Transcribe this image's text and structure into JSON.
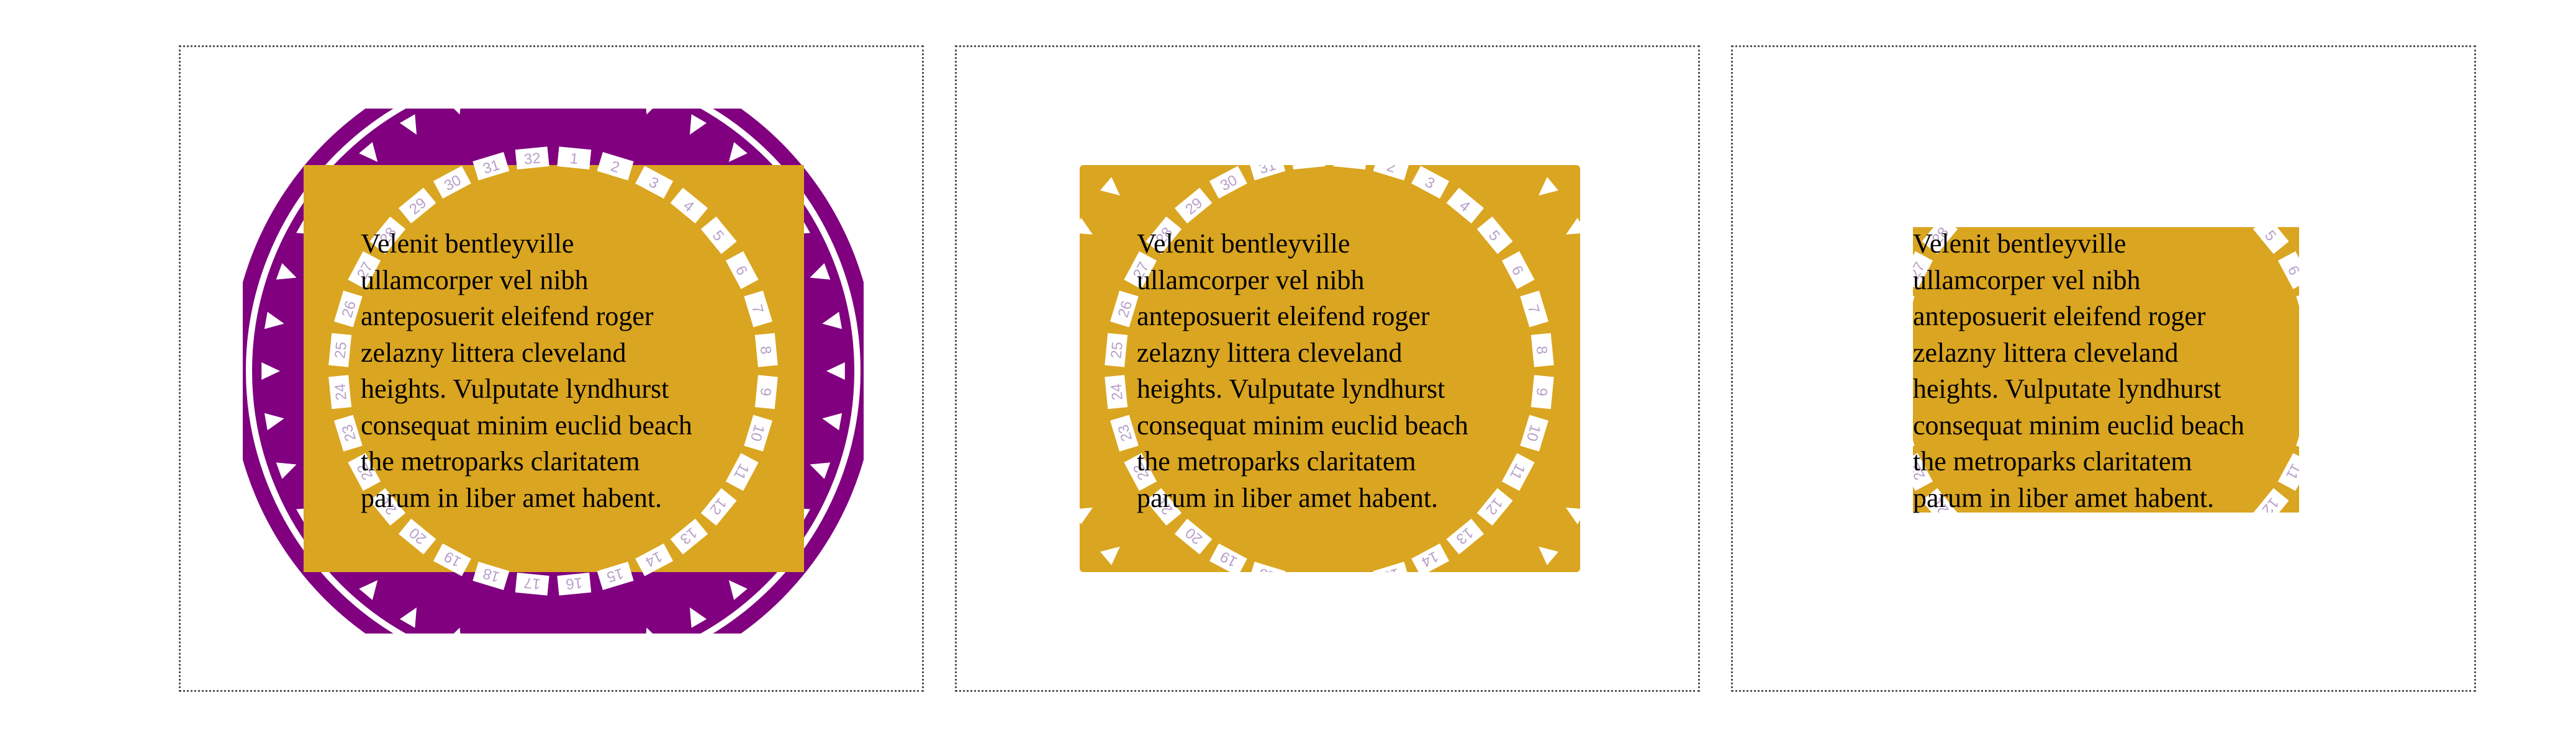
{
  "colors": {
    "background": "#ffffff",
    "gold": "#DAA520",
    "purple": "#800080",
    "tick": "#ffffff",
    "border": "#555555"
  },
  "dial_numbers": [
    "1",
    "2",
    "3",
    "4",
    "5",
    "6",
    "7",
    "8",
    "9",
    "10",
    "11",
    "12",
    "13",
    "14",
    "15",
    "16",
    "17",
    "18",
    "19",
    "20",
    "21",
    "22",
    "23",
    "24",
    "25",
    "26",
    "27",
    "28",
    "29",
    "30",
    "31",
    "32"
  ],
  "paragraph_lines": [
    "Velenit bentleyville",
    "ullamcorper vel nibh",
    "anteposuerit eleifend roger",
    "zelazny littera cleveland",
    "heights. Vulputate lyndhurst",
    "consequat minim euclid beach",
    "the metroparks claritatem",
    "parum in liber amet habent."
  ]
}
